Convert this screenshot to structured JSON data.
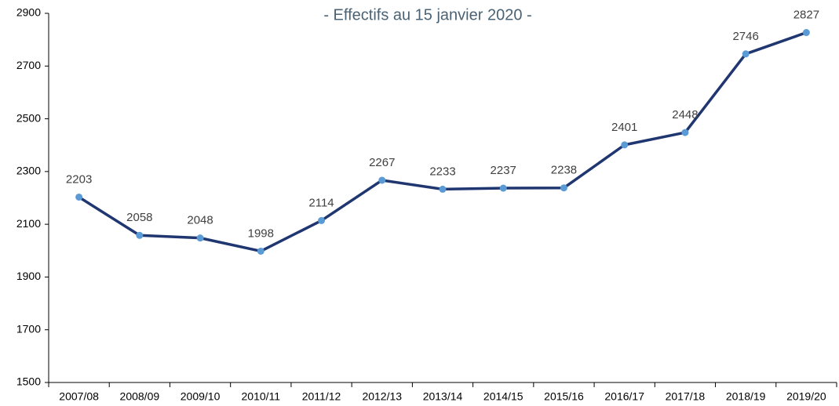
{
  "chart_data": {
    "type": "line",
    "title": "- Effectifs au 15 janvier 2020 -",
    "categories": [
      "2007/08",
      "2008/09",
      "2009/10",
      "2010/11",
      "2011/12",
      "2012/13",
      "2013/14",
      "2014/15",
      "2015/16",
      "2016/17",
      "2017/18",
      "2018/19",
      "2019/20"
    ],
    "series": [
      {
        "name": "Effectifs",
        "color": "#1f3670",
        "marker_color": "#5b9bd5",
        "values": [
          2203,
          2058,
          2048,
          1998,
          2114,
          2267,
          2233,
          2237,
          2238,
          2401,
          2448,
          2746,
          2827
        ]
      }
    ],
    "ylim": [
      1500,
      2900
    ],
    "yticks": [
      1500,
      1700,
      1900,
      2100,
      2300,
      2500,
      2700,
      2900
    ],
    "grid": false
  }
}
